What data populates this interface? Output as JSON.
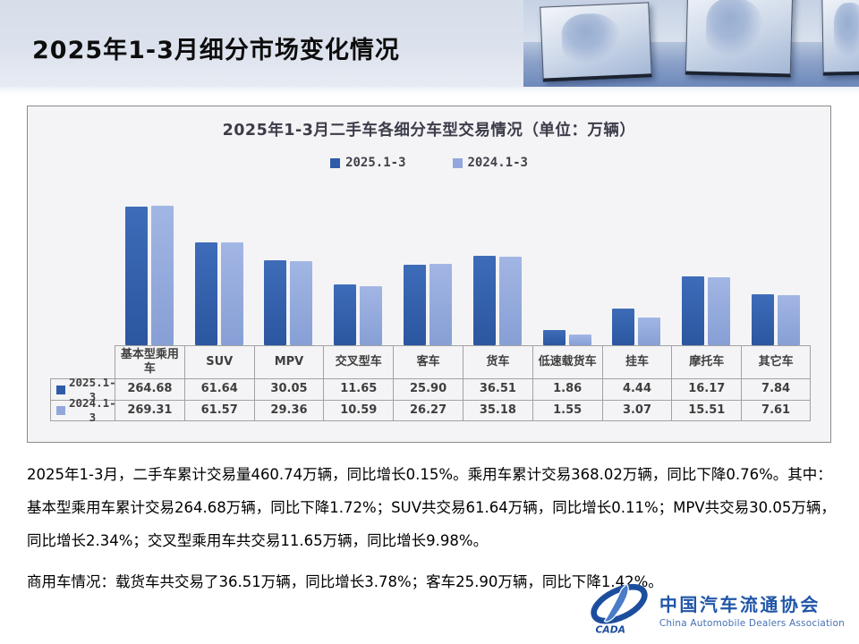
{
  "page": {
    "title": "2025年1-3月细分市场变化情况"
  },
  "colors": {
    "series_2025": "#2e5ca8",
    "series_2024": "#92a8dc",
    "header_band": "#dae1ec",
    "panel_bg": "#f4f4f6",
    "logo_blue": "#2156a7"
  },
  "chart_data": {
    "type": "bar",
    "title": "2025年1-3月二手车各细分车型交易情况（单位：万辆）",
    "unit": "万辆",
    "y_scale": "log10",
    "grid": false,
    "legend_position": "top",
    "categories": [
      "基本型乘用车",
      "SUV",
      "MPV",
      "交叉型车",
      "客车",
      "货车",
      "低速载货车",
      "挂车",
      "摩托车",
      "其它车"
    ],
    "series": [
      {
        "name": "2025.1-3",
        "color": "#2e5ca8",
        "values": [
          264.68,
          61.64,
          30.05,
          11.65,
          25.9,
          36.51,
          1.86,
          4.44,
          16.17,
          7.84
        ]
      },
      {
        "name": "2024.1-3",
        "color": "#92a8dc",
        "values": [
          269.31,
          61.57,
          29.36,
          10.59,
          26.27,
          35.18,
          1.55,
          3.07,
          15.51,
          7.61
        ]
      }
    ]
  },
  "body": {
    "p1": "2025年1-3月，二手车累计交易量460.74万辆，同比增长0.15%。乘用车累计交易368.02万辆，同比下降0.76%。其中：基本型乘用车累计交易264.68万辆，同比下降1.72%；SUV共交易61.64万辆，同比增长0.11%；MPV共交易30.05万辆，同比增长2.34%；交叉型乘用车共交易11.65万辆，同比增长9.98%。",
    "p2": "商用车情况：载货车共交易了36.51万辆，同比增长3.78%；客车25.90万辆，同比下降1.42%。"
  },
  "logo": {
    "cn": "中国汽车流通协会",
    "en": "China Automobile Dealers Association",
    "acronym": "CADA"
  }
}
